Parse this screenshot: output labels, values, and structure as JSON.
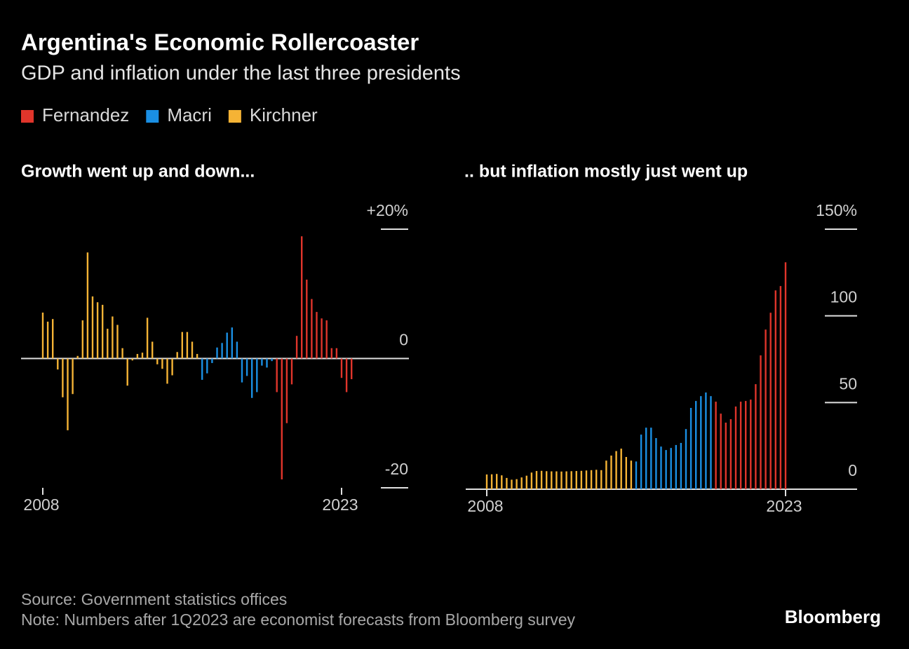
{
  "title": "Argentina's Economic Rollercoaster",
  "subtitle": "GDP and inflation under the last three presidents",
  "source": "Source: Government statistics offices",
  "note": "Note: Numbers after 1Q2023 are economist forecasts from Bloomberg survey",
  "brand": "Bloomberg",
  "chart_data": [
    {
      "type": "bar",
      "title": "Growth went up and down...",
      "categories": [
        "2008",
        null,
        null,
        null,
        null,
        null,
        null,
        null,
        null,
        null,
        null,
        null,
        null,
        null,
        null,
        null,
        null,
        null,
        null,
        null,
        null,
        null,
        null,
        null,
        null,
        null,
        null,
        null,
        null,
        null,
        null,
        null,
        null,
        null,
        null,
        null,
        null,
        null,
        null,
        null,
        null,
        null,
        null,
        null,
        null,
        null,
        null,
        null,
        null,
        null,
        null,
        null,
        null,
        null,
        null,
        null,
        null,
        null,
        null,
        null,
        "2023",
        null,
        null
      ],
      "ylim": [
        -20,
        20
      ],
      "yticks": [
        {
          "value": 20,
          "label": "+20%"
        },
        0,
        -20
      ],
      "series": [
        {
          "name": "Fernandez",
          "color": "#e0352b",
          "values": [
            null,
            null,
            null,
            null,
            null,
            null,
            null,
            null,
            null,
            null,
            null,
            null,
            null,
            null,
            null,
            null,
            null,
            null,
            null,
            null,
            null,
            null,
            null,
            null,
            null,
            null,
            null,
            null,
            null,
            null,
            null,
            null,
            null,
            null,
            null,
            null,
            null,
            null,
            null,
            null,
            null,
            null,
            null,
            null,
            null,
            null,
            null,
            -5.2,
            -18.7,
            -10.0,
            -4.0,
            3.5,
            18.9,
            12.2,
            9.2,
            7.2,
            6.2,
            5.9,
            1.6,
            1.6,
            -3.0,
            -5.2,
            -3.2
          ]
        },
        {
          "name": "Macri",
          "color": "#1a8fe3",
          "values": [
            null,
            null,
            null,
            null,
            null,
            null,
            null,
            null,
            null,
            null,
            null,
            null,
            null,
            null,
            null,
            null,
            null,
            null,
            null,
            null,
            null,
            null,
            null,
            null,
            null,
            null,
            null,
            null,
            null,
            null,
            null,
            null,
            -3.3,
            -2.3,
            -0.7,
            1.7,
            2.4,
            4.0,
            4.8,
            2.6,
            -3.7,
            -2.7,
            -6.1,
            -5.2,
            -1.1,
            -1.4,
            -0.4,
            null,
            null,
            null,
            null,
            null,
            null,
            null,
            null,
            null,
            null,
            null,
            null,
            null,
            null,
            null,
            null
          ]
        },
        {
          "name": "Kirchner",
          "color": "#f5b335",
          "values": [
            7.1,
            5.7,
            6.1,
            -1.7,
            -6.0,
            -11.1,
            -5.5,
            0.4,
            5.9,
            16.4,
            9.6,
            8.7,
            8.3,
            4.6,
            6.5,
            5.2,
            1.6,
            -4.2,
            -0.3,
            0.7,
            0.9,
            6.3,
            2.6,
            -0.9,
            -1.6,
            -3.9,
            -2.6,
            1.0,
            4.1,
            4.1,
            2.6,
            0.7,
            null,
            null,
            null,
            null,
            null,
            null,
            null,
            null,
            null,
            null,
            null,
            null,
            null,
            null,
            null,
            null,
            null,
            null,
            null,
            null,
            null,
            null,
            null,
            null,
            null,
            null,
            null,
            null,
            null,
            null,
            null
          ]
        }
      ]
    },
    {
      "type": "bar",
      "title": ".. but inflation mostly just went up",
      "categories": [
        "2008",
        null,
        null,
        null,
        null,
        null,
        null,
        null,
        null,
        null,
        null,
        null,
        null,
        null,
        null,
        null,
        null,
        null,
        null,
        null,
        null,
        null,
        null,
        null,
        null,
        null,
        null,
        null,
        null,
        null,
        null,
        null,
        null,
        null,
        null,
        null,
        null,
        null,
        null,
        null,
        null,
        null,
        null,
        null,
        null,
        null,
        null,
        null,
        null,
        null,
        null,
        null,
        null,
        null,
        null,
        null,
        null,
        null,
        null,
        null,
        "2023"
      ],
      "ylim": [
        0,
        150
      ],
      "yticks": [
        {
          "value": 150,
          "label": "150%"
        },
        100,
        50,
        0
      ],
      "series": [
        {
          "color": "#e0352b",
          "values": [
            null,
            null,
            null,
            null,
            null,
            null,
            null,
            null,
            null,
            null,
            null,
            null,
            null,
            null,
            null,
            null,
            null,
            null,
            null,
            null,
            null,
            null,
            null,
            null,
            null,
            null,
            null,
            null,
            null,
            null,
            null,
            null,
            null,
            null,
            null,
            null,
            null,
            null,
            null,
            null,
            null,
            null,
            null,
            null,
            null,
            null,
            50.5,
            43.6,
            38.4,
            40.4,
            47.7,
            50.5,
            50.9,
            51.7,
            60.6,
            77.2,
            92.1,
            101.8,
            114.7,
            117.2,
            130.9
          ]
        },
        {
          "color": "#1a8fe3",
          "values": [
            null,
            null,
            null,
            null,
            null,
            null,
            null,
            null,
            null,
            null,
            null,
            null,
            null,
            null,
            null,
            null,
            null,
            null,
            null,
            null,
            null,
            null,
            null,
            null,
            null,
            null,
            null,
            null,
            null,
            null,
            16.0,
            31.5,
            35.5,
            35.5,
            29.5,
            24.6,
            22.6,
            23.8,
            25.5,
            26.7,
            34.7,
            46.9,
            50.9,
            53.7,
            55.8,
            53.7,
            null,
            null,
            null,
            null,
            null,
            null,
            null,
            null,
            null,
            null,
            null,
            null,
            null,
            null,
            null
          ]
        },
        {
          "color": "#f5b335",
          "values": [
            8.5,
            8.6,
            8.8,
            8.0,
            6.5,
            5.5,
            5.8,
            6.8,
            7.8,
            9.6,
            10.5,
            10.6,
            10.4,
            10.3,
            10.3,
            10.2,
            10.3,
            10.4,
            10.5,
            10.6,
            10.8,
            11.0,
            11.2,
            11.0,
            16.5,
            19.4,
            22.0,
            23.4,
            18.6,
            16.5,
            null,
            null,
            null,
            null,
            null,
            null,
            null,
            null,
            null,
            null,
            null,
            null,
            null,
            null,
            null,
            null,
            null,
            null,
            null,
            null,
            null,
            null,
            null,
            null,
            null,
            null,
            null,
            null,
            null,
            null,
            null
          ]
        }
      ]
    }
  ]
}
